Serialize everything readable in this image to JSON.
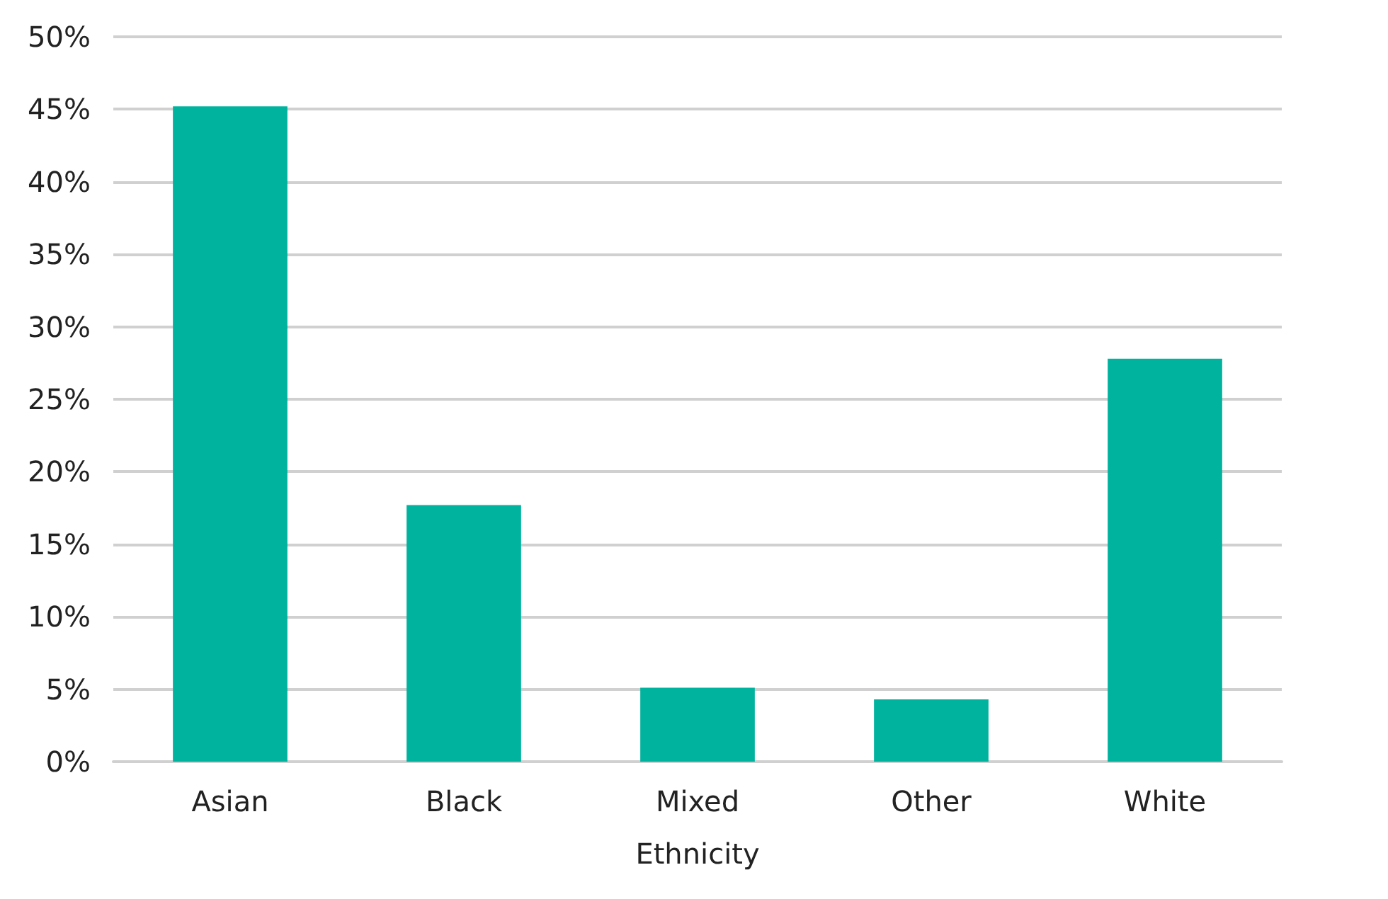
{
  "chart_data": {
    "type": "bar",
    "xlabel": "Ethnicity",
    "categories": [
      "Asian",
      "Black",
      "Mixed",
      "Other",
      "White"
    ],
    "values": [
      45.2,
      17.7,
      5.1,
      4.3,
      27.8
    ],
    "color": "#00b39f",
    "ylim": [
      0,
      50
    ],
    "yticks": [
      {
        "value": 0,
        "label": "0%"
      },
      {
        "value": 5,
        "label": "5%"
      },
      {
        "value": 10,
        "label": "10%"
      },
      {
        "value": 15,
        "label": "15%"
      },
      {
        "value": 20,
        "label": "20%"
      },
      {
        "value": 25,
        "label": "25%"
      },
      {
        "value": 30,
        "label": "30%"
      },
      {
        "value": 35,
        "label": "35%"
      },
      {
        "value": 40,
        "label": "40%"
      },
      {
        "value": 45,
        "label": "45%"
      },
      {
        "value": 50,
        "label": "50%"
      }
    ],
    "grid": "y"
  }
}
